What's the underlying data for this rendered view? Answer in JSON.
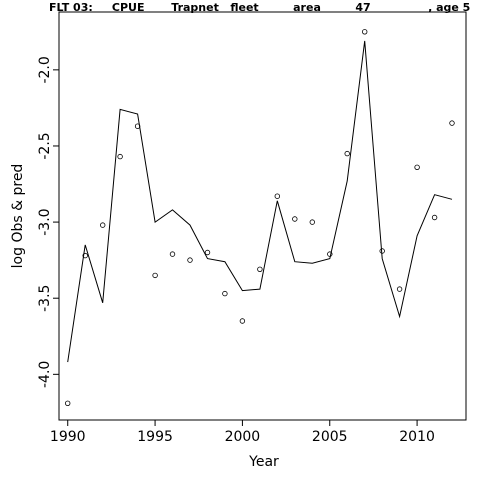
{
  "chart_data": {
    "type": "line",
    "title": "FLT 03:     CPUE       Trapnet   fleet         area         47               , age 5",
    "xlabel": "Year",
    "ylabel": "log Obs & pred",
    "xlim": [
      1989.5,
      2012.8
    ],
    "ylim": [
      -4.3,
      -1.62
    ],
    "x_ticks": [
      1990,
      1995,
      2000,
      2005,
      2010
    ],
    "y_ticks": [
      -4.0,
      -3.5,
      -3.0,
      -2.5,
      -2.0
    ],
    "x_tick_labels": [
      "1990",
      "1995",
      "2000",
      "2005",
      "2010"
    ],
    "y_tick_labels": [
      "-4.0",
      "-3.5",
      "-3.0",
      "-2.5",
      "-2.0"
    ],
    "grid": false,
    "series": [
      {
        "style": "points",
        "x": [
          1990,
          1991,
          1992,
          1993,
          1994,
          1995,
          1996,
          1997,
          1998,
          1999,
          2000,
          2001,
          2002,
          2003,
          2004,
          2005,
          2006,
          2007,
          2008,
          2009,
          2010,
          2011,
          2012
        ],
        "values": [
          -4.19,
          -3.22,
          -3.02,
          -2.57,
          -2.37,
          -3.35,
          -3.21,
          -3.25,
          -3.2,
          -3.47,
          -3.65,
          -3.31,
          -2.83,
          -2.98,
          -3.0,
          -3.21,
          -2.55,
          -1.75,
          -3.19,
          -3.44,
          -2.64,
          -2.97,
          -2.35
        ]
      },
      {
        "style": "line",
        "x": [
          1990,
          1991,
          1992,
          1993,
          1994,
          1995,
          1996,
          1997,
          1998,
          1999,
          2000,
          2001,
          2002,
          2003,
          2004,
          2005,
          2006,
          2007,
          2008,
          2009,
          2010,
          2011,
          2012
        ],
        "values": [
          -3.92,
          -3.15,
          -3.53,
          -2.26,
          -2.29,
          -3.0,
          -2.92,
          -3.02,
          -3.24,
          -3.26,
          -3.45,
          -3.44,
          -2.86,
          -3.26,
          -3.27,
          -3.24,
          -2.73,
          -1.81,
          -3.24,
          -3.62,
          -3.09,
          -2.82,
          -2.85
        ]
      }
    ]
  }
}
